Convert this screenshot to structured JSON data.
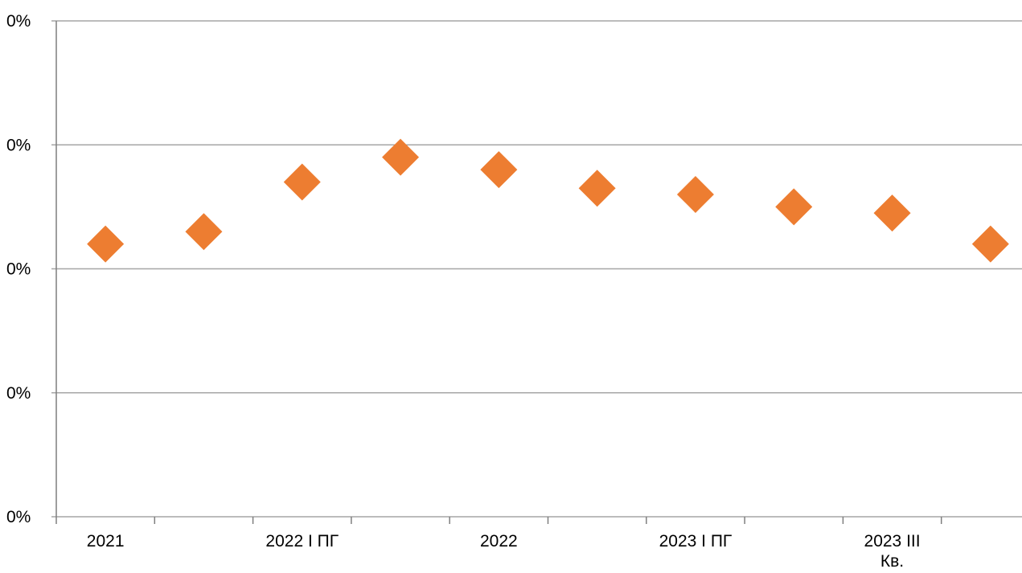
{
  "chart_data": {
    "type": "scatter",
    "title": "",
    "xlabel": "",
    "ylabel": "",
    "categories": [
      "2021",
      "",
      "2022 I ПГ",
      "",
      "2022",
      "",
      "2023 I ПГ",
      "",
      "2023 III Кв.",
      ""
    ],
    "y_tick_labels": [
      "0%",
      "0%",
      "0%",
      "0%",
      "0%"
    ],
    "ylim": [
      0,
      4
    ],
    "grid": true,
    "legend": "none",
    "series": [
      {
        "color": "#ED7D31",
        "marker": "diamond",
        "values": [
          2.2,
          2.3,
          2.7,
          2.9,
          2.8,
          2.65,
          2.6,
          2.5,
          2.45,
          2.2
        ]
      }
    ],
    "colors": {
      "grid": "#A6A6A6",
      "axis": "#7F7F7F",
      "marker": "#ED7D31"
    }
  }
}
